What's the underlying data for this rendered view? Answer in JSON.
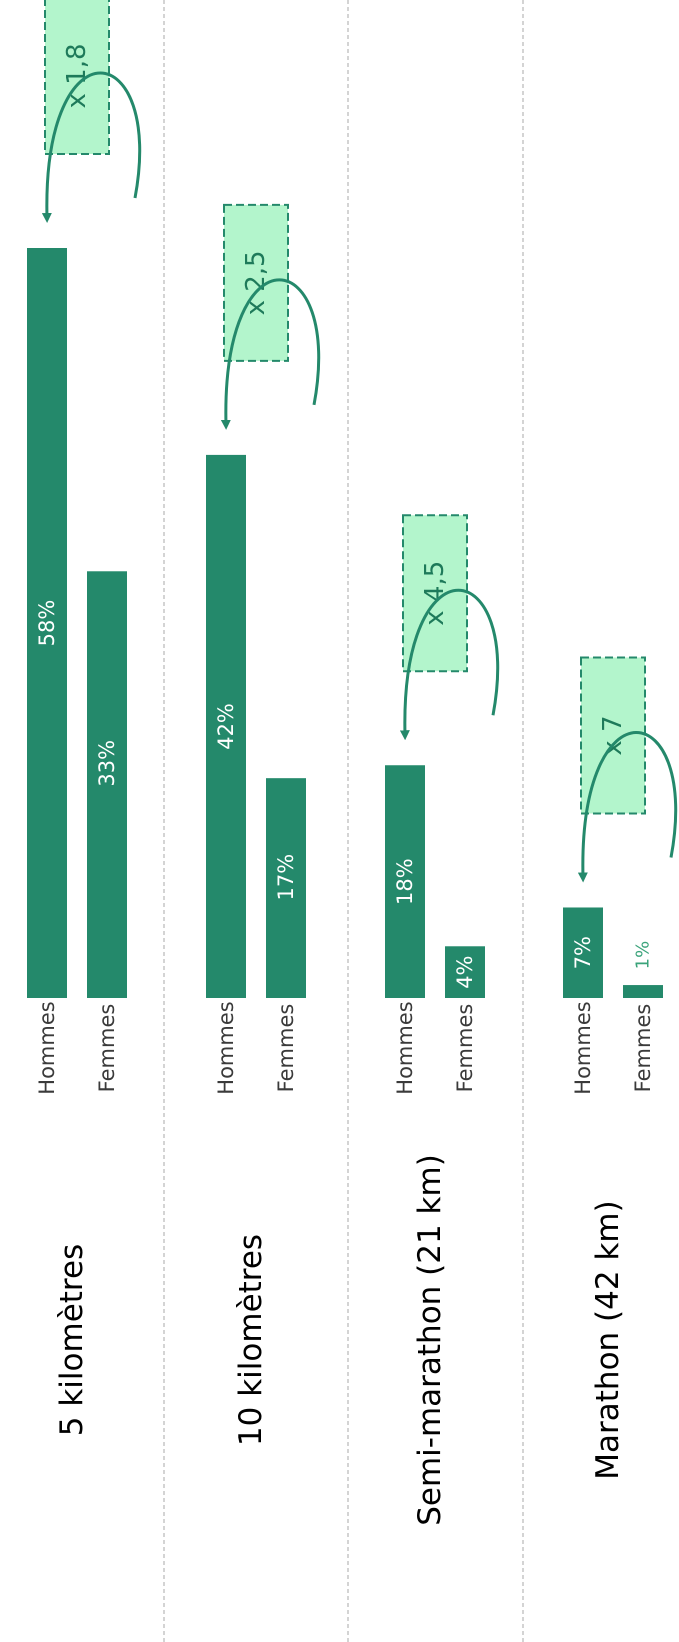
{
  "chart_data": {
    "type": "bar",
    "orientation": "rotated",
    "categories": [
      "5 kilomètres",
      "10 kilomètres",
      "Semi-marathon (21 km)",
      "Marathon (42 km)"
    ],
    "series_labels": [
      "Hommes",
      "Femmes"
    ],
    "values": [
      {
        "hommes": 58,
        "femmes": 33,
        "hommes_label": "58%",
        "femmes_label": "33%",
        "ratio": "x 1,8"
      },
      {
        "hommes": 42,
        "femmes": 17,
        "hommes_label": "42%",
        "femmes_label": "17%",
        "ratio": "x 2,5"
      },
      {
        "hommes": 18,
        "femmes": 4,
        "hommes_label": "18%",
        "femmes_label": "4%",
        "ratio": "x 4,5"
      },
      {
        "hommes": 7,
        "femmes": 1,
        "hommes_label": "7%",
        "femmes_label": "1%",
        "ratio": "x 7"
      }
    ],
    "value_max": 58,
    "colors": {
      "bar": "#24896b",
      "ratio_box_fill": "#b3f5cc",
      "ratio_box_border": "#24896b",
      "arrow": "#24896b",
      "separator": "#aaaaaa"
    }
  }
}
